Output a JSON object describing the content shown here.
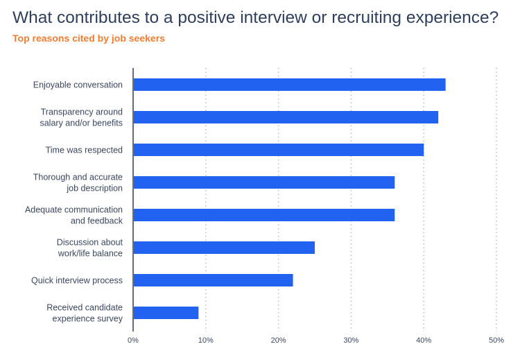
{
  "chart_data": {
    "type": "bar",
    "orientation": "horizontal",
    "title": "What contributes to a positive interview or recruiting experience?",
    "subtitle": "Top reasons cited by job seekers",
    "categories": [
      [
        "Enjoyable conversation"
      ],
      [
        "Transparency around",
        "salary and/or benefits"
      ],
      [
        "Time was respected"
      ],
      [
        "Thorough and accurate",
        "job description"
      ],
      [
        "Adequate communication",
        "and feedback"
      ],
      [
        "Discussion about",
        "work/life balance"
      ],
      [
        "Quick interview process"
      ],
      [
        "Received candidate",
        "experience survey"
      ]
    ],
    "values": [
      43,
      42,
      40,
      36,
      36,
      25,
      22,
      9
    ],
    "xlim": [
      0,
      50
    ],
    "xticks": [
      "0%",
      "10%",
      "20%",
      "30%",
      "40%",
      "50%"
    ],
    "grid": "vertical dotted",
    "colors": {
      "bar": "#2162f0",
      "title": "#2e3f5e",
      "subtitle": "#f47c30",
      "grid": "#b8bccb",
      "axis": "#2e3f5e"
    }
  }
}
